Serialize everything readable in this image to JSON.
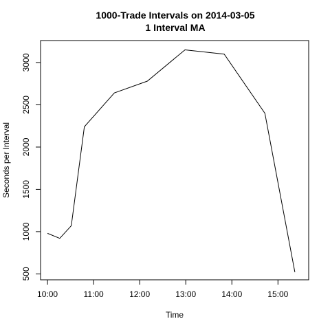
{
  "chart_data": {
    "type": "line",
    "title": "1000-Trade Intervals on 2014-03-05",
    "subtitle": "1 Interval MA",
    "xlabel": "Time",
    "ylabel": "Seconds per Interval",
    "x_tick_labels": [
      "10:00",
      "11:00",
      "12:00",
      "13:00",
      "14:00",
      "15:00"
    ],
    "y_tick_labels": [
      "500",
      "1000",
      "1500",
      "2000",
      "2500",
      "3000"
    ],
    "x_ticks": [
      "10:00",
      "11:00",
      "12:00",
      "13:00",
      "14:00",
      "15:00"
    ],
    "y_ticks": [
      500,
      1000,
      1500,
      2000,
      2500,
      3000
    ],
    "xlim": [
      "09:51",
      "15:40"
    ],
    "ylim": [
      430,
      3260
    ],
    "grid": false,
    "color": "#000000",
    "series": [
      {
        "x": [
          "10:00",
          "10:16",
          "10:31",
          "10:48",
          "11:27",
          "12:10",
          "12:59",
          "13:50",
          "14:43",
          "15:22"
        ],
        "values": [
          980,
          920,
          1070,
          2240,
          2640,
          2780,
          3150,
          3100,
          2400,
          520
        ]
      }
    ]
  }
}
